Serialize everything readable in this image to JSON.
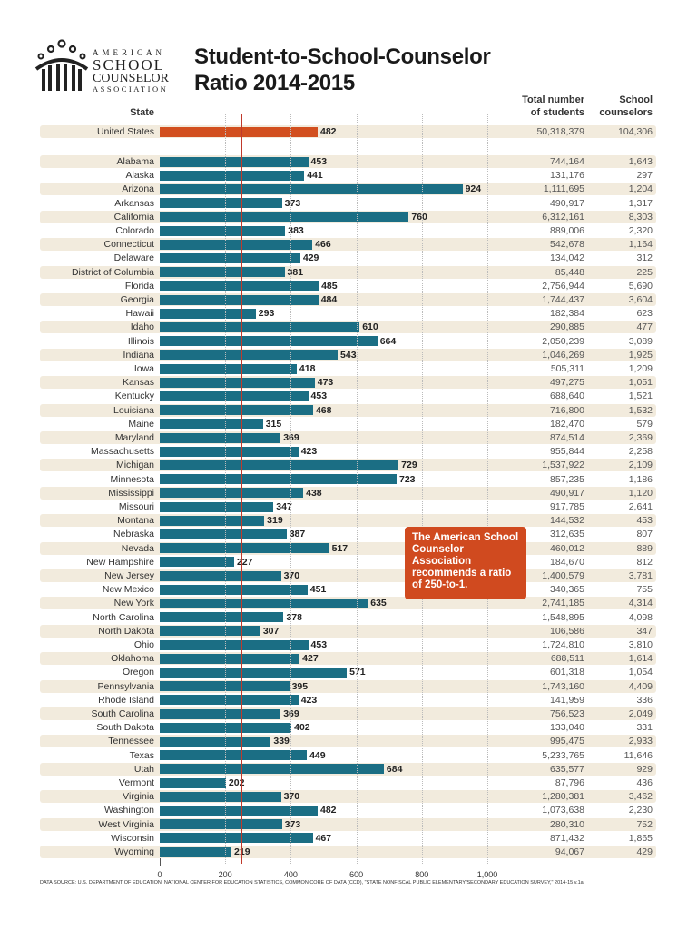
{
  "logo": {
    "line1": "AMERICAN",
    "line2": "SCHOOL",
    "line3": "COUNSELOR",
    "line4": "ASSOCIATION"
  },
  "title_line1": "Student-to-School-Counselor",
  "title_line2": "Ratio 2014-2015",
  "headers": {
    "state": "State",
    "students_1": "Total number",
    "students_2": "of students",
    "counselors_1": "School",
    "counselors_2": "counselors"
  },
  "callout": "The American School Counselor Association recommends a ratio of 250-to-1.",
  "source": "DATA SOURCE: U.S. DEPARTMENT OF EDUCATION, NATIONAL CENTER FOR EDUCATION STATISTICS, COMMON CORE OF DATA (CCD), \"STATE NONFISCAL PUBLIC ELEMENTARY/SECONDARY EDUCATION SURVEY,\" 2014-15 v.1a.",
  "colors": {
    "bar": "#1b6e84",
    "national_bar": "#d24f1f",
    "reference_line": "#c0392b",
    "stripe": "#f2ebdd",
    "callout": "#d04a1f"
  },
  "chart_data": {
    "type": "bar",
    "orientation": "horizontal",
    "xlim": [
      0,
      1000
    ],
    "x_ticks": [
      "0",
      "200",
      "400",
      "600",
      "800",
      "1,000"
    ],
    "reference_line": 250,
    "grid": true,
    "national": {
      "state": "United States",
      "ratio": 482,
      "students": "50,318,379",
      "counselors": "104,306"
    },
    "rows": [
      {
        "state": "Alabama",
        "ratio": 453,
        "students": "744,164",
        "counselors": "1,643"
      },
      {
        "state": "Alaska",
        "ratio": 441,
        "students": "131,176",
        "counselors": "297"
      },
      {
        "state": "Arizona",
        "ratio": 924,
        "students": "1,111,695",
        "counselors": "1,204"
      },
      {
        "state": "Arkansas",
        "ratio": 373,
        "students": "490,917",
        "counselors": "1,317"
      },
      {
        "state": "California",
        "ratio": 760,
        "students": "6,312,161",
        "counselors": "8,303"
      },
      {
        "state": "Colorado",
        "ratio": 383,
        "students": "889,006",
        "counselors": "2,320"
      },
      {
        "state": "Connecticut",
        "ratio": 466,
        "students": "542,678",
        "counselors": "1,164"
      },
      {
        "state": "Delaware",
        "ratio": 429,
        "students": "134,042",
        "counselors": "312"
      },
      {
        "state": "District of Columbia",
        "ratio": 381,
        "students": "85,448",
        "counselors": "225"
      },
      {
        "state": "Florida",
        "ratio": 485,
        "students": "2,756,944",
        "counselors": "5,690"
      },
      {
        "state": "Georgia",
        "ratio": 484,
        "students": "1,744,437",
        "counselors": "3,604"
      },
      {
        "state": "Hawaii",
        "ratio": 293,
        "students": "182,384",
        "counselors": "623"
      },
      {
        "state": "Idaho",
        "ratio": 610,
        "students": "290,885",
        "counselors": "477"
      },
      {
        "state": "Illinois",
        "ratio": 664,
        "students": "2,050,239",
        "counselors": "3,089"
      },
      {
        "state": "Indiana",
        "ratio": 543,
        "students": "1,046,269",
        "counselors": "1,925"
      },
      {
        "state": "Iowa",
        "ratio": 418,
        "students": "505,311",
        "counselors": "1,209"
      },
      {
        "state": "Kansas",
        "ratio": 473,
        "students": "497,275",
        "counselors": "1,051"
      },
      {
        "state": "Kentucky",
        "ratio": 453,
        "students": "688,640",
        "counselors": "1,521"
      },
      {
        "state": "Louisiana",
        "ratio": 468,
        "students": "716,800",
        "counselors": "1,532"
      },
      {
        "state": "Maine",
        "ratio": 315,
        "students": "182,470",
        "counselors": "579"
      },
      {
        "state": "Maryland",
        "ratio": 369,
        "students": "874,514",
        "counselors": "2,369"
      },
      {
        "state": "Massachusetts",
        "ratio": 423,
        "students": "955,844",
        "counselors": "2,258"
      },
      {
        "state": "Michigan",
        "ratio": 729,
        "students": "1,537,922",
        "counselors": "2,109"
      },
      {
        "state": "Minnesota",
        "ratio": 723,
        "students": "857,235",
        "counselors": "1,186"
      },
      {
        "state": "Mississippi",
        "ratio": 438,
        "students": "490,917",
        "counselors": "1,120"
      },
      {
        "state": "Missouri",
        "ratio": 347,
        "students": "917,785",
        "counselors": "2,641"
      },
      {
        "state": "Montana",
        "ratio": 319,
        "students": "144,532",
        "counselors": "453"
      },
      {
        "state": "Nebraska",
        "ratio": 387,
        "students": "312,635",
        "counselors": "807"
      },
      {
        "state": "Nevada",
        "ratio": 517,
        "students": "460,012",
        "counselors": "889"
      },
      {
        "state": "New Hampshire",
        "ratio": 227,
        "students": "184,670",
        "counselors": "812"
      },
      {
        "state": "New Jersey",
        "ratio": 370,
        "students": "1,400,579",
        "counselors": "3,781"
      },
      {
        "state": "New Mexico",
        "ratio": 451,
        "students": "340,365",
        "counselors": "755"
      },
      {
        "state": "New York",
        "ratio": 635,
        "students": "2,741,185",
        "counselors": "4,314"
      },
      {
        "state": "North Carolina",
        "ratio": 378,
        "students": "1,548,895",
        "counselors": "4,098"
      },
      {
        "state": "North Dakota",
        "ratio": 307,
        "students": "106,586",
        "counselors": "347"
      },
      {
        "state": "Ohio",
        "ratio": 453,
        "students": "1,724,810",
        "counselors": "3,810"
      },
      {
        "state": "Oklahoma",
        "ratio": 427,
        "students": "688,511",
        "counselors": "1,614"
      },
      {
        "state": "Oregon",
        "ratio": 571,
        "students": "601,318",
        "counselors": "1,054"
      },
      {
        "state": "Pennsylvania",
        "ratio": 395,
        "students": "1,743,160",
        "counselors": "4,409"
      },
      {
        "state": "Rhode Island",
        "ratio": 423,
        "students": "141,959",
        "counselors": "336"
      },
      {
        "state": "South Carolina",
        "ratio": 369,
        "students": "756,523",
        "counselors": "2,049"
      },
      {
        "state": "South Dakota",
        "ratio": 402,
        "students": "133,040",
        "counselors": "331"
      },
      {
        "state": "Tennessee",
        "ratio": 339,
        "students": "995,475",
        "counselors": "2,933"
      },
      {
        "state": "Texas",
        "ratio": 449,
        "students": "5,233,765",
        "counselors": "11,646"
      },
      {
        "state": "Utah",
        "ratio": 684,
        "students": "635,577",
        "counselors": "929"
      },
      {
        "state": "Vermont",
        "ratio": 202,
        "students": "87,796",
        "counselors": "436"
      },
      {
        "state": "Virginia",
        "ratio": 370,
        "students": "1,280,381",
        "counselors": "3,462"
      },
      {
        "state": "Washington",
        "ratio": 482,
        "students": "1,073,638",
        "counselors": "2,230"
      },
      {
        "state": "West Virginia",
        "ratio": 373,
        "students": "280,310",
        "counselors": "752"
      },
      {
        "state": "Wisconsin",
        "ratio": 467,
        "students": "871,432",
        "counselors": "1,865"
      },
      {
        "state": "Wyoming",
        "ratio": 219,
        "students": "94,067",
        "counselors": "429"
      }
    ]
  }
}
